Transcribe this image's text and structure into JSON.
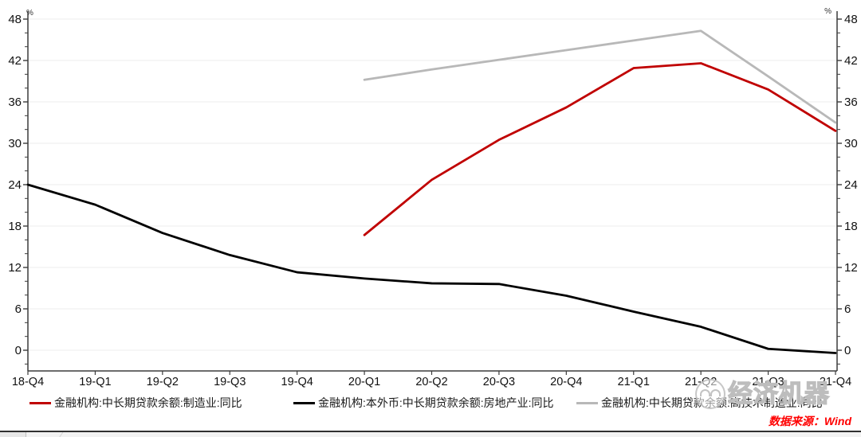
{
  "chart_data": {
    "type": "line",
    "title": "",
    "xlabel": "",
    "ylabel": "%",
    "unit": "%",
    "categories": [
      "18-Q4",
      "19-Q1",
      "19-Q2",
      "19-Q3",
      "19-Q4",
      "20-Q1",
      "20-Q2",
      "20-Q3",
      "20-Q4",
      "21-Q1",
      "21-Q2",
      "21-Q3",
      "21-Q4"
    ],
    "ylim": [
      -3,
      48
    ],
    "y_major_ticks": [
      0,
      6,
      12,
      18,
      24,
      30,
      36,
      42,
      48
    ],
    "y_minor_step": 2,
    "grid": "horizontal-major-only",
    "legend_position": "bottom",
    "axis_color": "#3c3c3c",
    "gridline_color": "#ededed",
    "series": [
      {
        "name": "金融机构:中长期贷款余额:制造业:同比",
        "color": "#c00000",
        "start_index": 5,
        "values": [
          16.7,
          24.7,
          30.5,
          35.2,
          40.9,
          41.6,
          37.8,
          31.8
        ]
      },
      {
        "name": "金融机构:本外币:中长期贷款余额:房地产业:同比",
        "color": "#000000",
        "start_index": 0,
        "values": [
          24.0,
          21.1,
          17.0,
          13.8,
          11.3,
          10.4,
          9.7,
          9.6,
          7.9,
          5.6,
          3.4,
          0.2,
          -0.4
        ]
      },
      {
        "name": "金融机构:中长期贷款余额:高技术制造业:同比",
        "color": "#b8b8b8",
        "start_index": 5,
        "values": [
          39.2,
          40.7,
          42.1,
          43.5,
          44.9,
          46.3,
          39.7,
          33.0
        ]
      }
    ],
    "percent_label_left": "%",
    "percent_label_right": "%"
  },
  "watermark": {
    "brand": "经济机器",
    "color": "#bdbdbd"
  },
  "source": {
    "label": "数据来源：Wind",
    "color": "#ff0000"
  }
}
